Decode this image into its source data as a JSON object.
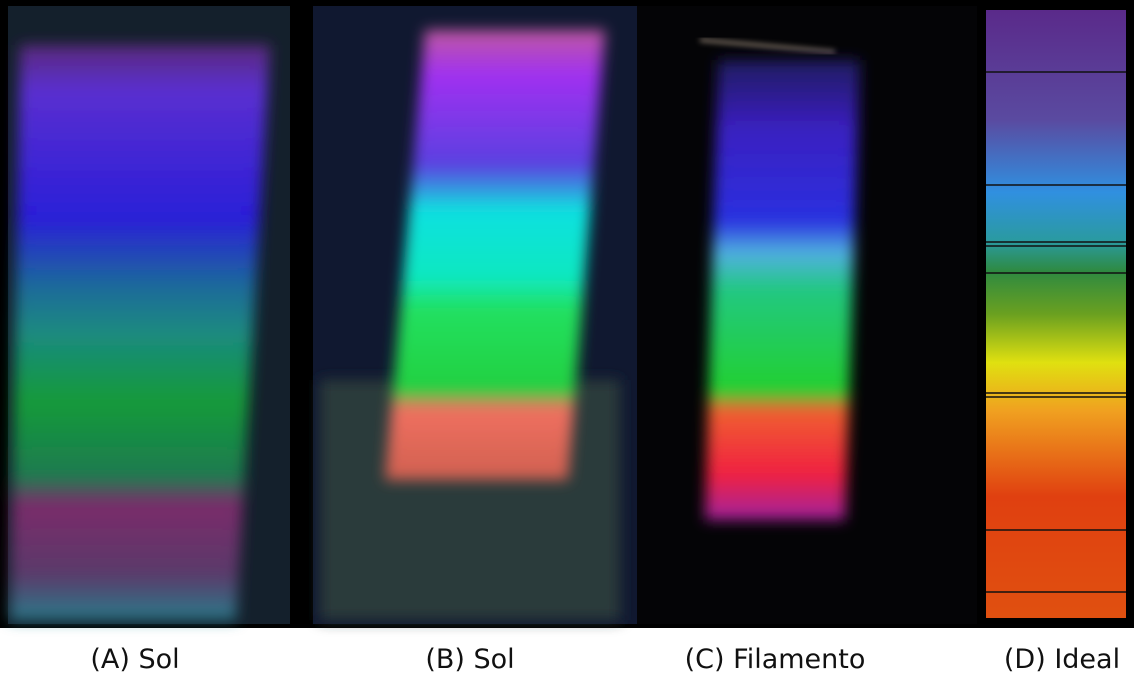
{
  "captions": [
    "(A) Sol",
    "(B) Sol",
    "(C) Filamento",
    "(D) Ideal"
  ]
}
